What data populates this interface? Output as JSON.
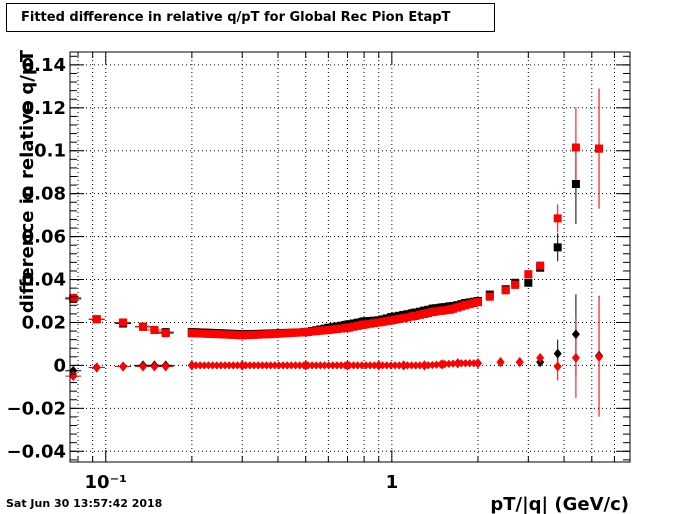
{
  "title": "Fitted difference in relative q/pT for Global Rec Pion EtapT",
  "timestamp": "Sat Jun 30 13:57:42 2018",
  "chart_data": {
    "type": "scatter",
    "title": "Fitted difference in relative q/pT for Global Rec Pion EtapT",
    "xlabel": "pT/|q| (GeV/c)",
    "ylabel": "difference in relative q/pT",
    "xscale": "log",
    "xlim": [
      0.075,
      6.8
    ],
    "ylim": [
      -0.045,
      0.146
    ],
    "yticks": [
      -0.04,
      -0.02,
      0,
      0.02,
      0.04,
      0.06,
      0.08,
      0.1,
      0.12,
      0.14
    ],
    "ytick_labels": [
      "−0.04",
      "−0.02",
      "0",
      "0.02",
      "0.04",
      "0.06",
      "0.08",
      "0.1",
      "0.12",
      "0.14"
    ],
    "xtick_labels": [
      {
        "value": 0.1,
        "label": "10⁻¹"
      },
      {
        "value": 1,
        "label": "1"
      }
    ],
    "grid": true,
    "colors": {
      "black": "#000000",
      "red": "#ff0000"
    },
    "series": [
      {
        "marker": "square",
        "color": "#000000",
        "x": [
          0.077,
          0.093,
          0.115,
          0.135,
          0.148,
          0.162,
          0.2,
          0.3,
          0.5,
          0.6,
          0.7,
          0.8,
          0.9,
          1.0,
          1.1,
          1.2,
          1.3,
          1.4,
          1.5,
          1.6,
          1.7,
          1.8,
          2.0,
          2.2,
          2.5,
          2.7,
          3.0,
          3.3,
          3.8,
          4.4,
          5.3
        ],
        "y": [
          0.031,
          0.0215,
          0.0195,
          0.018,
          0.0165,
          0.0155,
          0.0155,
          0.0145,
          0.0155,
          0.0175,
          0.019,
          0.0205,
          0.021,
          0.0225,
          0.0235,
          0.0245,
          0.0255,
          0.0265,
          0.027,
          0.0275,
          0.028,
          0.029,
          0.03,
          0.033,
          0.0355,
          0.0385,
          0.0385,
          0.0455,
          0.055,
          0.0845,
          0.101
        ]
      },
      {
        "marker": "square",
        "color": "#ff0000",
        "x": [
          0.077,
          0.093,
          0.115,
          0.135,
          0.148,
          0.162,
          0.2,
          0.3,
          0.5,
          0.6,
          0.7,
          0.8,
          0.9,
          1.0,
          1.1,
          1.2,
          1.3,
          1.4,
          1.5,
          1.6,
          1.7,
          1.8,
          2.0,
          2.2,
          2.5,
          2.7,
          3.0,
          3.3,
          3.8,
          4.4,
          5.3
        ],
        "y": [
          0.0315,
          0.0215,
          0.02,
          0.018,
          0.0165,
          0.015,
          0.015,
          0.014,
          0.0155,
          0.0165,
          0.0175,
          0.019,
          0.02,
          0.021,
          0.022,
          0.023,
          0.024,
          0.025,
          0.0255,
          0.026,
          0.027,
          0.028,
          0.0295,
          0.032,
          0.035,
          0.0375,
          0.0425,
          0.0465,
          0.0685,
          0.1015,
          0.101
        ]
      },
      {
        "marker": "diamond",
        "color": "#000000",
        "x": [
          0.077,
          0.093,
          0.115,
          0.135,
          0.148,
          0.162,
          0.2,
          0.3,
          0.5,
          0.7,
          0.9,
          1.1,
          1.3,
          1.5,
          1.7,
          2.0,
          2.4,
          2.8,
          3.3,
          3.8,
          4.4,
          5.3
        ],
        "y": [
          -0.0025,
          -0.001,
          -0.0005,
          0,
          0,
          0,
          0,
          0,
          0,
          0,
          0,
          0,
          0,
          0.0005,
          0.001,
          0.001,
          0.0015,
          0.0015,
          0.0015,
          0.0055,
          0.0145,
          0.0045
        ]
      },
      {
        "marker": "diamond",
        "color": "#ff0000",
        "x": [
          0.077,
          0.093,
          0.115,
          0.135,
          0.148,
          0.162,
          0.2,
          0.3,
          0.5,
          0.7,
          0.9,
          1.1,
          1.3,
          1.5,
          1.7,
          2.0,
          2.4,
          2.8,
          3.3,
          3.8,
          4.4,
          5.3
        ],
        "y": [
          -0.005,
          -0.001,
          -0.0005,
          -0.0005,
          -0.0005,
          -0.0005,
          0,
          0,
          0,
          0,
          0,
          0,
          0,
          0.0005,
          0.001,
          0.001,
          0.0015,
          0.0015,
          0.0035,
          -0.0005,
          0.0035,
          0.004
        ]
      }
    ]
  }
}
